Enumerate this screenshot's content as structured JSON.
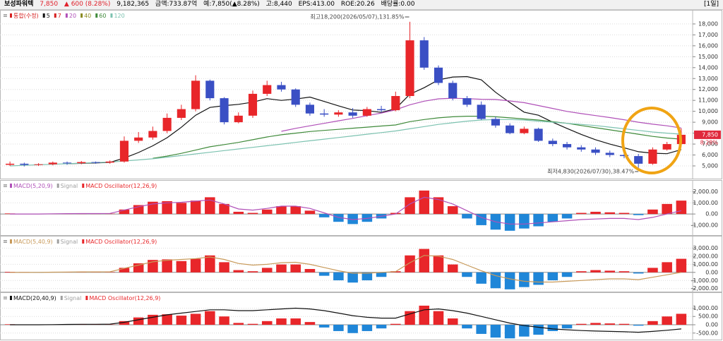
{
  "header": {
    "name": "보성파워텍",
    "price": "7,850",
    "change": "▲ 600 (8.28%)",
    "volume": "9,182,365",
    "amount": "금액:733.87억",
    "expected": "예:7,850(▲8.28%)",
    "high": "고:8,440",
    "eps": "EPS:413.00",
    "roe": "ROE:20.26",
    "dividend": "배당률:0.00",
    "period": "[1일]"
  },
  "chart_data": [
    {
      "type": "candlestick",
      "legend_title": "통합(수정)",
      "up_color": "#e8262a",
      "down_color": "#3a4fc4",
      "grid": true,
      "open": [
        5100,
        5200,
        5100,
        5150,
        5300,
        5250,
        5350,
        5300,
        5400,
        7300,
        7600,
        8200,
        9400,
        10200,
        12800,
        11200,
        9000,
        9600,
        11600,
        12400,
        12000,
        10600,
        9800,
        9700,
        9900,
        9600,
        10200,
        10100,
        11400,
        16500,
        14000,
        12600,
        11200,
        10600,
        9300,
        8700,
        8000,
        8400,
        7300,
        7000,
        6700,
        6500,
        6200,
        6000,
        5900,
        5200,
        6500,
        7000
      ],
      "high": [
        5400,
        5300,
        5250,
        5400,
        5400,
        5450,
        5400,
        5500,
        7700,
        8100,
        8600,
        9800,
        10600,
        13300,
        12900,
        11300,
        9900,
        11900,
        12800,
        12700,
        12100,
        10800,
        10200,
        10100,
        10300,
        10400,
        10500,
        11800,
        18200,
        16800,
        14200,
        12800,
        11400,
        10900,
        9500,
        8900,
        8600,
        8500,
        7500,
        7200,
        6900,
        6700,
        6400,
        6200,
        6100,
        6700,
        7200,
        8440
      ],
      "low": [
        5000,
        4950,
        5000,
        5050,
        5100,
        5150,
        5200,
        5200,
        5300,
        7100,
        7400,
        8000,
        9200,
        10000,
        11000,
        8800,
        8900,
        9400,
        11400,
        11800,
        10400,
        9600,
        9500,
        9500,
        9400,
        9500,
        9900,
        10000,
        11200,
        13800,
        12400,
        11000,
        10400,
        9200,
        8500,
        7900,
        7900,
        7200,
        6800,
        6500,
        6300,
        6000,
        5800,
        5700,
        4830,
        5100,
        6400,
        6900
      ],
      "close": [
        5200,
        5100,
        5150,
        5300,
        5250,
        5350,
        5300,
        5400,
        7300,
        7600,
        8200,
        9400,
        10200,
        12800,
        11200,
        9000,
        9600,
        11600,
        12400,
        12000,
        10600,
        9800,
        9700,
        9900,
        9600,
        10200,
        10100,
        11400,
        16500,
        14000,
        12600,
        11200,
        10600,
        9300,
        8700,
        8000,
        8400,
        7300,
        7000,
        6700,
        6500,
        6200,
        6000,
        5900,
        5200,
        6500,
        7000,
        7850
      ],
      "series": [
        {
          "name": "5",
          "color": "#111111",
          "values": [
            null,
            null,
            null,
            null,
            5200,
            5230,
            5270,
            5320,
            5720,
            6230,
            6840,
            7580,
            8540,
            9640,
            10350,
            10520,
            10640,
            10840,
            11160,
            11000,
            11120,
            11300,
            10900,
            10500,
            10120,
            10060,
            9900,
            10240,
            11560,
            12160,
            12880,
            13140,
            13180,
            12880,
            11740,
            10800,
            9920,
            9640,
            9000,
            8430,
            7880,
            7400,
            7000,
            6660,
            6300,
            6160,
            6120,
            6490
          ]
        },
        {
          "name": "7",
          "color": "#d62020"
        },
        {
          "name": "20",
          "color": "#b050b8",
          "values": [
            null,
            null,
            null,
            null,
            null,
            null,
            null,
            null,
            null,
            null,
            null,
            null,
            null,
            null,
            null,
            null,
            null,
            null,
            null,
            8170,
            8440,
            8670,
            8900,
            9130,
            9350,
            9600,
            9840,
            10140,
            10600,
            10930,
            11140,
            11190,
            11160,
            11100,
            11080,
            10950,
            10790,
            10530,
            10260,
            9990,
            9790,
            9610,
            9430,
            9230,
            9000,
            8820,
            8670,
            8470
          ]
        },
        {
          "name": "40",
          "color": "#8a8a20"
        },
        {
          "name": "60",
          "color": "#3f8a3a",
          "values": [
            null,
            null,
            null,
            null,
            null,
            null,
            null,
            null,
            null,
            null,
            5700,
            5900,
            6150,
            6450,
            6750,
            6950,
            7150,
            7400,
            7650,
            7850,
            8000,
            8150,
            8250,
            8350,
            8450,
            8550,
            8650,
            8750,
            9050,
            9250,
            9400,
            9500,
            9550,
            9550,
            9500,
            9400,
            9300,
            9200,
            9050,
            8900,
            8700,
            8500,
            8300,
            8100,
            7900,
            7700,
            7550,
            7450
          ]
        },
        {
          "name": "120",
          "color": "#7cc2b0",
          "values": [
            5000,
            5050,
            5100,
            5150,
            5200,
            5250,
            5300,
            5350,
            5450,
            5550,
            5650,
            5800,
            5950,
            6100,
            6250,
            6400,
            6550,
            6700,
            6850,
            7000,
            7150,
            7300,
            7450,
            7600,
            7750,
            7900,
            8050,
            8200,
            8400,
            8600,
            8800,
            8950,
            9100,
            9200,
            9250,
            9250,
            9200,
            9100,
            9000,
            8900,
            8800,
            8700,
            8550,
            8400,
            8250,
            8100,
            8000,
            7900
          ]
        }
      ],
      "ylim": [
        3900,
        18900
      ],
      "yticks": [
        {
          "value": 5000,
          "label": "5,000"
        },
        {
          "value": 6000,
          "label": "6,000"
        },
        {
          "value": 7000,
          "label": "7,000"
        },
        {
          "value": 8000,
          "label": "8,000"
        },
        {
          "value": 9000,
          "label": "9,000"
        },
        {
          "value": 10000,
          "label": "10,000"
        },
        {
          "value": 11000,
          "label": "11,000"
        },
        {
          "value": 12000,
          "label": "12,000"
        },
        {
          "value": 13000,
          "label": "13,000"
        },
        {
          "value": 14000,
          "label": "14,000"
        },
        {
          "value": 15000,
          "label": "15,000"
        },
        {
          "value": 16000,
          "label": "16,000"
        },
        {
          "value": 17000,
          "label": "17,000"
        },
        {
          "value": 18000,
          "label": "18,000"
        }
      ],
      "annotations": [
        "최고18,200(2026/05/07),131.85%",
        "최저4,830(2026/07/30),38.47%"
      ],
      "price_tag": "7,850",
      "price_tag_change": "8.28%"
    },
    {
      "type": "macd",
      "grid": true,
      "series": [
        {
          "name": "MACD(5,20,9)",
          "color": "#b050b8",
          "values": [
            0,
            0,
            0,
            20,
            30,
            40,
            40,
            50,
            350,
            650,
            900,
            1000,
            1050,
            1150,
            1250,
            900,
            450,
            350,
            500,
            700,
            700,
            500,
            100,
            -300,
            -500,
            -400,
            -200,
            0,
            900,
            1500,
            1300,
            900,
            300,
            -300,
            -700,
            -900,
            -900,
            -800,
            -700,
            -600,
            -500,
            -450,
            -400,
            -400,
            -500,
            -300,
            0,
            300
          ]
        },
        {
          "name": "Signal",
          "color": "#a0a0a0"
        },
        {
          "name": "MACD Oscillator(12,26,9)",
          "color": "#e8262a",
          "down_color": "#1f86d8",
          "style": "histogram",
          "values": [
            50,
            30,
            -20,
            10,
            40,
            50,
            60,
            30,
            400,
            800,
            1100,
            1150,
            1000,
            1200,
            1500,
            900,
            200,
            100,
            400,
            700,
            700,
            300,
            -300,
            -700,
            -900,
            -700,
            -400,
            100,
            1500,
            2100,
            1500,
            700,
            -400,
            -1000,
            -1400,
            -1500,
            -1300,
            -1100,
            -700,
            -400,
            100,
            200,
            150,
            100,
            -100,
            400,
            900,
            1200
          ]
        }
      ],
      "ylim": [
        -1700,
        2600
      ],
      "yticks": [
        {
          "value": -1000,
          "label": "-1,000.00"
        },
        {
          "value": 0,
          "label": "0.00"
        },
        {
          "value": 1000,
          "label": "1,000.00"
        },
        {
          "value": 2000,
          "label": "2,000.00"
        }
      ]
    },
    {
      "type": "macd",
      "grid": true,
      "series": [
        {
          "name": "MACD(5,40,9)",
          "color": "#c89a5a",
          "values": [
            0,
            0,
            0,
            30,
            40,
            60,
            60,
            70,
            500,
            900,
            1300,
            1500,
            1600,
            1700,
            1900,
            1600,
            1100,
            900,
            1000,
            1200,
            1250,
            1000,
            600,
            200,
            -100,
            -100,
            0,
            100,
            1200,
            2100,
            2000,
            1600,
            900,
            200,
            -400,
            -800,
            -1100,
            -1200,
            -1200,
            -1100,
            -1000,
            -900,
            -800,
            -800,
            -900,
            -600,
            -300,
            0
          ]
        },
        {
          "name": "Signal",
          "color": "#a0a0a0"
        },
        {
          "name": "MACD Oscillator(12,26,9)",
          "color": "#e8262a",
          "down_color": "#1f86d8",
          "style": "histogram",
          "values": [
            70,
            40,
            -30,
            15,
            55,
            70,
            85,
            40,
            560,
            1120,
            1540,
            1610,
            1400,
            1680,
            2100,
            1260,
            280,
            140,
            560,
            980,
            980,
            420,
            -420,
            -980,
            -1260,
            -980,
            -560,
            140,
            2100,
            2900,
            2100,
            980,
            -560,
            -1400,
            -1960,
            -2100,
            -1820,
            -1540,
            -980,
            -560,
            140,
            280,
            210,
            140,
            -140,
            560,
            1260,
            1680
          ]
        }
      ],
      "ylim": [
        -2200,
        4000
      ],
      "yticks": [
        {
          "value": -2000,
          "label": "-2,000.00"
        },
        {
          "value": -1000,
          "label": "-1,000.00"
        },
        {
          "value": 0,
          "label": "0.00"
        },
        {
          "value": 1000,
          "label": "1,000.00"
        },
        {
          "value": 2000,
          "label": "2,000.00"
        },
        {
          "value": 3000,
          "label": "3,000.00"
        }
      ]
    },
    {
      "type": "macd",
      "grid": true,
      "series": [
        {
          "name": "MACD(20,40,9)",
          "color": "#111111",
          "values": [
            0,
            0,
            0,
            10,
            20,
            30,
            30,
            40,
            150,
            300,
            450,
            600,
            700,
            800,
            900,
            900,
            850,
            850,
            900,
            950,
            1000,
            950,
            850,
            700,
            550,
            450,
            400,
            400,
            650,
            900,
            950,
            850,
            700,
            500,
            300,
            100,
            -50,
            -150,
            -250,
            -300,
            -350,
            -380,
            -400,
            -420,
            -450,
            -400,
            -330,
            -250
          ]
        },
        {
          "name": "Signal",
          "color": "#a0a0a0"
        },
        {
          "name": "MACD Oscillator(12,26,9)",
          "color": "#e8262a",
          "down_color": "#1f86d8",
          "style": "histogram",
          "values": [
            30,
            15,
            -10,
            5,
            20,
            30,
            35,
            15,
            220,
            440,
            600,
            630,
            550,
            660,
            820,
            500,
            110,
            55,
            220,
            380,
            380,
            165,
            -165,
            -380,
            -500,
            -380,
            -220,
            55,
            820,
            1150,
            820,
            380,
            -220,
            -550,
            -770,
            -820,
            -710,
            -600,
            -380,
            -220,
            55,
            110,
            80,
            55,
            -55,
            220,
            500,
            660
          ]
        }
      ],
      "ylim": [
        -850,
        1700
      ],
      "yticks": [
        {
          "value": -500,
          "label": "-500.00"
        },
        {
          "value": 0,
          "label": "0.00"
        },
        {
          "value": 500,
          "label": "500.00"
        },
        {
          "value": 1000,
          "label": "1,000.00"
        }
      ]
    }
  ]
}
